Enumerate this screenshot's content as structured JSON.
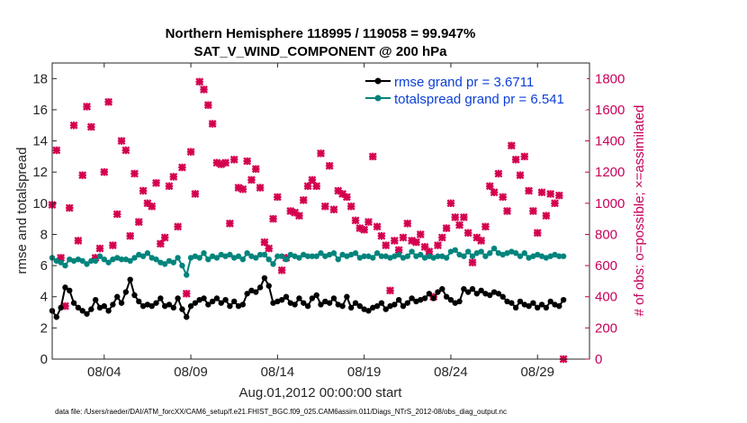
{
  "chart_data": {
    "type": "line",
    "title": "Northern Hemisphere 118995 / 119058 = 99.947%",
    "subtitle": "SAT_V_WIND_COMPONENT @ 200 hPa",
    "xlabel": "Aug.01,2012 00:00:00 start",
    "ylabel_left": "rmse and totalspread",
    "ylabel_right": "# of obs: o=possible; ×=assimilated",
    "xlim": [
      1,
      32
    ],
    "ylim_left": [
      0,
      19
    ],
    "ylim_right": [
      0,
      1900
    ],
    "x_ticks": [
      4,
      9,
      14,
      19,
      24,
      29
    ],
    "x_tick_labels": [
      "08/04",
      "08/09",
      "08/14",
      "08/19",
      "08/24",
      "08/29"
    ],
    "y_ticks_left": [
      0,
      2,
      4,
      6,
      8,
      10,
      12,
      14,
      16,
      18
    ],
    "y_ticks_right": [
      0,
      200,
      400,
      600,
      800,
      1000,
      1200,
      1400,
      1600,
      1800
    ],
    "legend": [
      {
        "name": "rmse grand pr = 3.6711",
        "color": "#000000"
      },
      {
        "name": "totalspread grand pr = 6.541",
        "color": "#00847c"
      }
    ],
    "x_start": 1.0,
    "x_step": 0.25,
    "series": [
      {
        "name": "rmse",
        "axis": "left",
        "color": "#000000",
        "values": [
          3.1,
          2.7,
          3.3,
          4.6,
          4.4,
          3.6,
          3.3,
          3.1,
          2.9,
          3.2,
          3.8,
          3.3,
          3.4,
          3.1,
          3.5,
          4.0,
          3.6,
          4.3,
          5.1,
          4.1,
          3.7,
          3.4,
          3.5,
          3.4,
          3.6,
          3.9,
          3.4,
          3.5,
          3.3,
          3.9,
          3.2,
          2.7,
          3.4,
          3.6,
          3.8,
          3.9,
          3.5,
          3.7,
          3.9,
          3.6,
          3.8,
          3.4,
          3.7,
          3.4,
          3.5,
          4.2,
          4.4,
          4.3,
          4.6,
          5.2,
          4.7,
          3.6,
          3.7,
          3.8,
          4.0,
          3.6,
          3.5,
          3.9,
          3.6,
          3.4,
          3.9,
          4.1,
          3.5,
          3.7,
          3.6,
          3.9,
          3.5,
          3.4,
          4.0,
          3.3,
          3.6,
          3.4,
          3.2,
          3.1,
          3.3,
          3.4,
          3.6,
          3.2,
          3.4,
          3.5,
          3.8,
          3.4,
          3.6,
          3.9,
          3.7,
          3.8,
          3.9,
          4.2,
          3.9,
          4.3,
          4.5,
          4.0,
          3.8,
          3.6,
          3.7,
          4.5,
          4.3,
          4.5,
          4.2,
          4.4,
          4.2,
          4.1,
          4.3,
          4.2,
          4.0,
          3.7,
          3.6,
          3.3,
          3.7,
          3.5,
          3.4,
          3.6,
          3.3,
          3.5,
          3.3,
          3.7,
          3.5,
          3.4,
          3.8
        ],
        "markers": "filled-circle"
      },
      {
        "name": "totalspread",
        "axis": "left",
        "color": "#00847c",
        "values": [
          6.5,
          6.3,
          6.2,
          6.0,
          6.4,
          6.3,
          6.4,
          6.3,
          6.1,
          6.3,
          6.3,
          6.6,
          6.4,
          6.2,
          6.4,
          6.5,
          6.4,
          6.4,
          6.3,
          6.5,
          6.7,
          6.6,
          6.8,
          6.5,
          6.4,
          6.2,
          6.1,
          6.3,
          6.2,
          6.5,
          6.0,
          5.4,
          6.5,
          6.6,
          6.5,
          6.8,
          6.4,
          6.6,
          6.5,
          6.7,
          6.6,
          6.7,
          6.5,
          6.6,
          6.4,
          6.8,
          6.6,
          6.5,
          6.7,
          6.7,
          6.4,
          6.1,
          6.6,
          6.6,
          6.4,
          6.7,
          6.6,
          6.5,
          6.7,
          6.6,
          6.6,
          6.6,
          6.8,
          6.6,
          6.7,
          6.8,
          6.4,
          6.7,
          6.6,
          6.7,
          6.8,
          6.5,
          6.6,
          6.6,
          6.5,
          6.8,
          6.6,
          6.6,
          6.5,
          6.6,
          6.7,
          6.5,
          6.6,
          6.9,
          6.6,
          6.7,
          6.5,
          6.6,
          6.5,
          6.6,
          6.6,
          6.5,
          6.9,
          7.0,
          6.7,
          6.6,
          6.9,
          6.6,
          6.8,
          6.9,
          6.6,
          6.8,
          7.1,
          6.8,
          6.7,
          6.8,
          6.9,
          6.8,
          6.6,
          6.8,
          6.5,
          6.6,
          6.7,
          6.6,
          6.5,
          6.6,
          6.7,
          6.6,
          6.6
        ],
        "markers": "filled-circle"
      }
    ],
    "obs_assimilated": {
      "axis": "right",
      "color": "#d4004f",
      "points": [
        [
          1.0,
          990
        ],
        [
          1.25,
          1340
        ],
        [
          1.5,
          650
        ],
        [
          1.75,
          340
        ],
        [
          2.0,
          970
        ],
        [
          2.25,
          1500
        ],
        [
          2.5,
          760
        ],
        [
          2.75,
          1180
        ],
        [
          3.0,
          1620
        ],
        [
          3.25,
          1490
        ],
        [
          3.5,
          650
        ],
        [
          3.75,
          710
        ],
        [
          4.0,
          1200
        ],
        [
          4.25,
          1650
        ],
        [
          4.5,
          730
        ],
        [
          4.75,
          930
        ],
        [
          5.0,
          1400
        ],
        [
          5.25,
          1340
        ],
        [
          5.5,
          790
        ],
        [
          5.75,
          1190
        ],
        [
          6.0,
          880
        ],
        [
          6.25,
          1080
        ],
        [
          6.5,
          1000
        ],
        [
          6.75,
          980
        ],
        [
          7.0,
          1130
        ],
        [
          7.25,
          740
        ],
        [
          7.5,
          780
        ],
        [
          7.75,
          1110
        ],
        [
          8.0,
          1170
        ],
        [
          8.25,
          850
        ],
        [
          8.5,
          1230
        ],
        [
          8.75,
          420
        ],
        [
          9.0,
          1330
        ],
        [
          9.25,
          1060
        ],
        [
          9.5,
          1780
        ],
        [
          9.75,
          1730
        ],
        [
          10.0,
          1630
        ],
        [
          10.25,
          1510
        ],
        [
          10.5,
          1260
        ],
        [
          10.75,
          1250
        ],
        [
          11.0,
          1260
        ],
        [
          11.25,
          870
        ],
        [
          11.5,
          1280
        ],
        [
          11.75,
          1100
        ],
        [
          12.0,
          1090
        ],
        [
          12.25,
          1270
        ],
        [
          12.5,
          1150
        ],
        [
          12.75,
          1220
        ],
        [
          13.0,
          1100
        ],
        [
          13.25,
          750
        ],
        [
          13.5,
          710
        ],
        [
          13.75,
          900
        ],
        [
          14.0,
          1040
        ],
        [
          14.25,
          570
        ],
        [
          14.5,
          650
        ],
        [
          14.75,
          950
        ],
        [
          15.0,
          940
        ],
        [
          15.25,
          920
        ],
        [
          15.5,
          1020
        ],
        [
          15.75,
          1110
        ],
        [
          16.0,
          1150
        ],
        [
          16.25,
          1110
        ],
        [
          16.5,
          1320
        ],
        [
          16.75,
          980
        ],
        [
          17.0,
          1240
        ],
        [
          17.25,
          960
        ],
        [
          17.5,
          1080
        ],
        [
          17.75,
          1060
        ],
        [
          18.0,
          1040
        ],
        [
          18.25,
          980
        ],
        [
          18.5,
          890
        ],
        [
          18.75,
          840
        ],
        [
          19.0,
          830
        ],
        [
          19.25,
          880
        ],
        [
          19.5,
          1300
        ],
        [
          19.75,
          850
        ],
        [
          20.0,
          790
        ],
        [
          20.25,
          730
        ],
        [
          20.5,
          440
        ],
        [
          20.75,
          760
        ],
        [
          21.0,
          700
        ],
        [
          21.25,
          780
        ],
        [
          21.5,
          870
        ],
        [
          21.75,
          760
        ],
        [
          22.0,
          750
        ],
        [
          22.25,
          800
        ],
        [
          22.5,
          720
        ],
        [
          22.75,
          690
        ],
        [
          23.0,
          400
        ],
        [
          23.25,
          730
        ],
        [
          23.5,
          780
        ],
        [
          23.75,
          840
        ],
        [
          24.0,
          1000
        ],
        [
          24.25,
          910
        ],
        [
          24.5,
          860
        ],
        [
          24.75,
          910
        ],
        [
          25.0,
          810
        ],
        [
          25.25,
          620
        ],
        [
          25.5,
          780
        ],
        [
          25.75,
          760
        ],
        [
          26.0,
          850
        ],
        [
          26.25,
          1110
        ],
        [
          26.5,
          1070
        ],
        [
          26.75,
          1190
        ],
        [
          27.0,
          1040
        ],
        [
          27.25,
          950
        ],
        [
          27.5,
          1370
        ],
        [
          27.75,
          1280
        ],
        [
          28.0,
          1180
        ],
        [
          28.25,
          1300
        ],
        [
          28.5,
          1080
        ],
        [
          28.75,
          950
        ],
        [
          29.0,
          810
        ],
        [
          29.25,
          1070
        ],
        [
          29.5,
          920
        ],
        [
          29.75,
          1060
        ],
        [
          30.0,
          1000
        ],
        [
          30.25,
          1050
        ],
        [
          30.5,
          0
        ]
      ]
    },
    "footnote": "data file: /Users/raeder/DAI/ATM_forcXX/CAM6_setup/f.e21.FHIST_BGC.f09_025.CAM6assim.011/Diags_NTrS_2012-08/obs_diag_output.nc"
  }
}
